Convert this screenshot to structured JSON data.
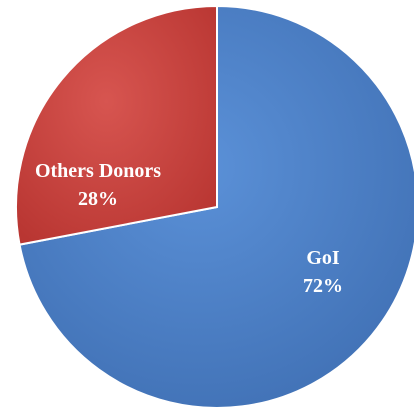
{
  "chart_data": {
    "type": "pie",
    "title": "",
    "slices": [
      {
        "label": "GoI",
        "value": 72,
        "value_label": "72%",
        "color": "#4a7ec6"
      },
      {
        "label": "Others Donors",
        "value": 28,
        "value_label": "28%",
        "color": "#c8403b"
      }
    ]
  }
}
